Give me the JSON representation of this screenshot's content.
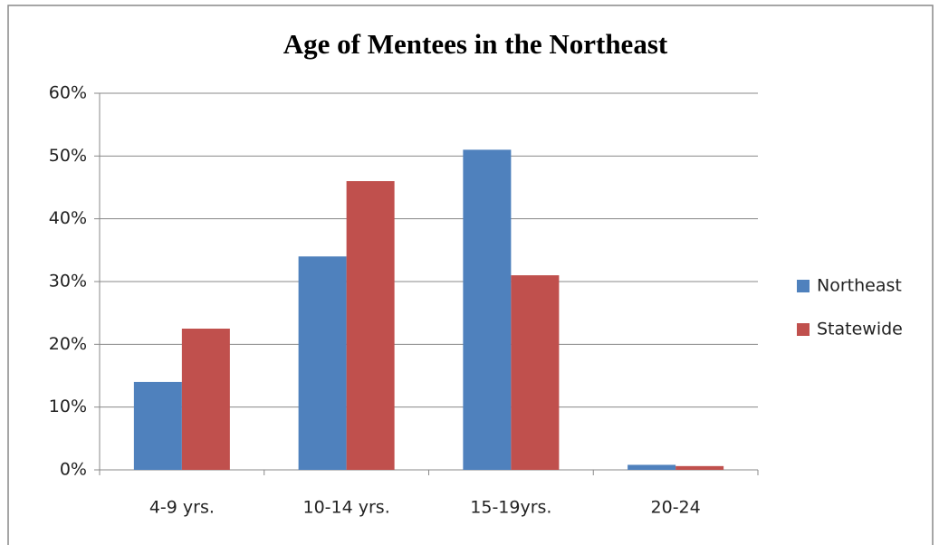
{
  "chart_data": {
    "type": "bar",
    "title": "Age of Mentees in the Northeast",
    "categories": [
      "4-9 yrs.",
      "10-14 yrs.",
      "15-19yrs.",
      "20-24"
    ],
    "series": [
      {
        "name": "Northeast",
        "color": "#4f81bd",
        "values": [
          14,
          34,
          51,
          0.8
        ]
      },
      {
        "name": "Statewide",
        "color": "#c0504d",
        "values": [
          22.5,
          46,
          31,
          0.6
        ]
      }
    ],
    "ylim": [
      0,
      60
    ],
    "yticks": [
      {
        "value": 0,
        "label": "0%"
      },
      {
        "value": 10,
        "label": "10%"
      },
      {
        "value": 20,
        "label": "20%"
      },
      {
        "value": 30,
        "label": "30%"
      },
      {
        "value": 40,
        "label": "40%"
      },
      {
        "value": 50,
        "label": "50%"
      },
      {
        "value": 60,
        "label": "60%"
      }
    ],
    "grid": true,
    "legend": "right"
  }
}
